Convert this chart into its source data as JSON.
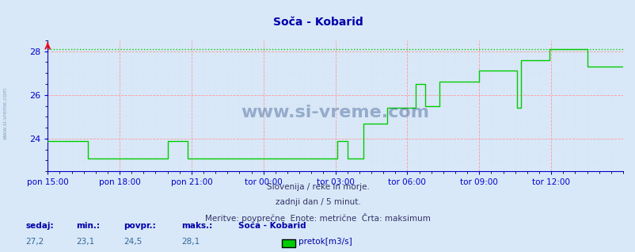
{
  "title": "Soča - Kobarid",
  "bg_color": "#d8e8f8",
  "plot_bg_color": "#d8e8f8",
  "line_color": "#00cc00",
  "dotted_line_color": "#00cc00",
  "grid_color_major": "#ff9999",
  "grid_color_minor": "#dddddd",
  "axis_color": "#0000cc",
  "title_color": "#0000aa",
  "ylim": [
    22.5,
    28.5
  ],
  "yticks": [
    24,
    26,
    28
  ],
  "max_value": 28.1,
  "subtitle1": "Slovenija / reke in morje.",
  "subtitle2": "zadnji dan / 5 minut.",
  "subtitle3": "Meritve: povprečne  Enote: metrične  Črta: maksimum",
  "legend_label": "pretok[m3/s]",
  "stats_sedaj": "27,2",
  "stats_min": "23,1",
  "stats_povpr": "24,5",
  "stats_maks": "28,1",
  "station_name": "Soča - Kobarid",
  "xtick_labels": [
    "pon 15:00",
    "pon 18:00",
    "pon 21:00",
    "tor 00:00",
    "tor 03:00",
    "tor 06:00",
    "tor 09:00",
    "tor 12:00"
  ],
  "xtick_positions": [
    0,
    36,
    72,
    108,
    144,
    180,
    216,
    252
  ],
  "data_y": [
    23.9,
    23.9,
    23.9,
    23.9,
    23.9,
    23.9,
    23.9,
    23.9,
    23.9,
    23.9,
    23.9,
    23.9,
    23.9,
    23.9,
    23.9,
    23.9,
    23.9,
    23.9,
    23.9,
    23.9,
    23.1,
    23.1,
    23.1,
    23.1,
    23.1,
    23.1,
    23.1,
    23.1,
    23.1,
    23.1,
    23.1,
    23.1,
    23.1,
    23.1,
    23.1,
    23.1,
    23.1,
    23.1,
    23.1,
    23.1,
    23.1,
    23.1,
    23.1,
    23.1,
    23.1,
    23.1,
    23.1,
    23.1,
    23.1,
    23.1,
    23.1,
    23.1,
    23.1,
    23.1,
    23.1,
    23.1,
    23.1,
    23.1,
    23.1,
    23.1,
    23.9,
    23.9,
    23.9,
    23.9,
    23.9,
    23.9,
    23.9,
    23.9,
    23.9,
    23.9,
    23.1,
    23.1,
    23.1,
    23.1,
    23.1,
    23.1,
    23.1,
    23.1,
    23.1,
    23.1,
    23.1,
    23.1,
    23.1,
    23.1,
    23.1,
    23.1,
    23.1,
    23.1,
    23.1,
    23.1,
    23.1,
    23.1,
    23.1,
    23.1,
    23.1,
    23.1,
    23.1,
    23.1,
    23.1,
    23.1,
    23.1,
    23.1,
    23.1,
    23.1,
    23.1,
    23.1,
    23.1,
    23.1,
    23.1,
    23.1,
    23.1,
    23.1,
    23.1,
    23.1,
    23.1,
    23.1,
    23.1,
    23.1,
    23.1,
    23.1,
    23.1,
    23.1,
    23.1,
    23.1,
    23.1,
    23.1,
    23.1,
    23.1,
    23.1,
    23.1,
    23.1,
    23.1,
    23.1,
    23.1,
    23.1,
    23.1,
    23.1,
    23.1,
    23.1,
    23.1,
    23.1,
    23.1,
    23.1,
    23.1,
    23.1,
    23.9,
    23.9,
    23.9,
    23.9,
    23.9,
    23.1,
    23.1,
    23.1,
    23.1,
    23.1,
    23.1,
    23.1,
    23.1,
    24.7,
    24.7,
    24.7,
    24.7,
    24.7,
    24.7,
    24.7,
    24.7,
    24.7,
    24.7,
    24.7,
    24.7,
    25.4,
    25.4,
    25.4,
    25.4,
    25.4,
    25.4,
    25.4,
    25.4,
    25.4,
    25.4,
    25.4,
    25.4,
    25.4,
    25.4,
    26.5,
    26.5,
    26.5,
    26.5,
    26.5,
    25.5,
    25.5,
    25.5,
    25.5,
    25.5,
    25.5,
    25.5,
    26.6,
    26.6,
    26.6,
    26.6,
    26.6,
    26.6,
    26.6,
    26.6,
    26.6,
    26.6,
    26.6,
    26.6,
    26.6,
    26.6,
    26.6,
    26.6,
    26.6,
    26.6,
    26.6,
    26.6,
    27.1,
    27.1,
    27.1,
    27.1,
    27.1,
    27.1,
    27.1,
    27.1,
    27.1,
    27.1,
    27.1,
    27.1,
    27.1,
    27.1,
    27.1,
    27.1,
    27.1,
    27.1,
    27.1,
    25.4,
    25.4,
    27.6,
    27.6,
    27.6,
    27.6,
    27.6,
    27.6,
    27.6,
    27.6,
    27.6,
    27.6,
    27.6,
    27.6,
    27.6,
    27.6,
    28.1,
    28.1,
    28.1,
    28.1,
    28.1,
    28.1,
    28.1,
    28.1,
    28.1,
    28.1,
    28.1,
    28.1,
    28.1,
    28.1,
    28.1,
    28.1,
    28.1,
    28.1,
    28.1,
    27.3,
    27.3,
    27.3,
    27.3,
    27.3,
    27.3,
    27.3,
    27.3,
    27.3,
    27.3,
    27.3,
    27.3,
    27.3,
    27.3,
    27.3,
    27.3,
    27.3,
    27.3,
    27.3
  ]
}
